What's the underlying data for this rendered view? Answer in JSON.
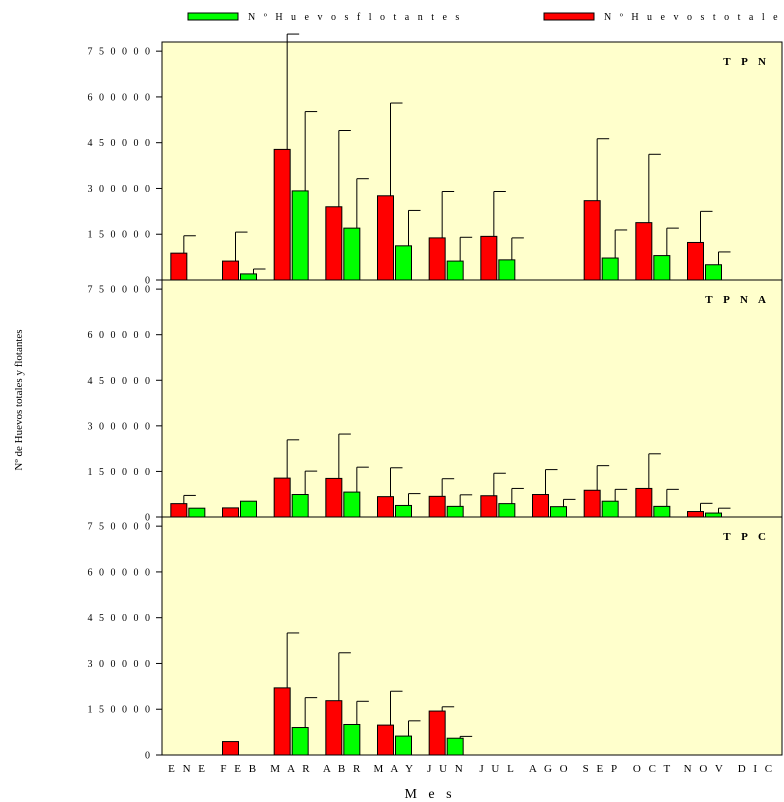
{
  "chart_data": {
    "type": "bar",
    "xlabel": "M e s",
    "ylabel": "Nº de Huevos totales y flotantes",
    "categories": [
      "E N E",
      "F E B",
      "M A R",
      "A B R",
      "M A Y",
      "J U N",
      "J U L",
      "A G O",
      "S E P",
      "O C T",
      "N O V",
      "D I C"
    ],
    "ylim": [
      0,
      780000
    ],
    "yticks": [
      0,
      150000,
      300000,
      450000,
      600000,
      750000
    ],
    "ytick_labels": [
      "0",
      "1 5 0 0 0 0",
      "3 0 0 0 0 0",
      "4 5 0 0 0 0",
      "6 0 0 0 0 0",
      "7 5 0 0 0 0"
    ],
    "legend": {
      "placement": "top",
      "entries": [
        {
          "label": "N º H u e v o s  f l o t a n t e s",
          "color": "#00ff00"
        },
        {
          "label": "N º  H u e v o s  t o t a l e s",
          "color": "#ff0000"
        }
      ]
    },
    "colors": {
      "background": "#ffffcc",
      "totales": "#ff0000",
      "flotantes": "#00ff00"
    },
    "panels": [
      {
        "title": "T P N",
        "series": [
          {
            "name": "N º  H u e v o s  t o t a l e s",
            "values": [
              88000,
              62000,
              428000,
              240000,
              276000,
              138000,
              143000,
              0,
              260000,
              188000,
              123000,
              0
            ],
            "error": [
              57000,
              95000,
              378000,
              250000,
              304000,
              152000,
              147000,
              0,
              203000,
              224000,
              102000,
              0
            ]
          },
          {
            "name": "N º H u e v o s  f l o t a n t e s",
            "values": [
              0,
              20000,
              292000,
              170000,
              112000,
              62000,
              66000,
              0,
              72000,
              80000,
              50000,
              0
            ],
            "error": [
              0,
              16000,
              260000,
              162000,
              116000,
              78000,
              72000,
              0,
              92000,
              90000,
              42000,
              0
            ]
          }
        ]
      },
      {
        "title": "T P N A",
        "series": [
          {
            "name": "N º  H u e v o s  t o t a l e s",
            "values": [
              44000,
              30000,
              128000,
              127000,
              67000,
              68000,
              70000,
              74000,
              88000,
              94000,
              18000,
              0
            ],
            "error": [
              27000,
              0,
              126000,
              146000,
              95000,
              58000,
              74000,
              82000,
              81000,
              114000,
              27000,
              0
            ]
          },
          {
            "name": "N º H u e v o s  f l o t a n t e s",
            "values": [
              29000,
              52000,
              74000,
              82000,
              38000,
              35000,
              44000,
              34000,
              52000,
              35000,
              13000,
              0
            ],
            "error": [
              0,
              0,
              77000,
              82000,
              39000,
              38000,
              50000,
              24000,
              39000,
              56000,
              16000,
              0
            ]
          }
        ]
      },
      {
        "title": "T P C",
        "series": [
          {
            "name": "N º  H u e v o s  t o t a l e s",
            "values": [
              0,
              44000,
              220000,
              178000,
              98000,
              144000,
              0,
              0,
              0,
              0,
              0,
              0
            ],
            "error": [
              0,
              0,
              180000,
              157000,
              111000,
              14000,
              0,
              0,
              0,
              0,
              0,
              0
            ]
          },
          {
            "name": "N º H u e v o s  f l o t a n t e s",
            "values": [
              0,
              0,
              90000,
              100000,
              62000,
              55000,
              0,
              0,
              0,
              0,
              0,
              0
            ],
            "error": [
              0,
              0,
              98000,
              76000,
              50000,
              6000,
              0,
              0,
              0,
              0,
              0,
              0
            ]
          }
        ]
      }
    ]
  }
}
